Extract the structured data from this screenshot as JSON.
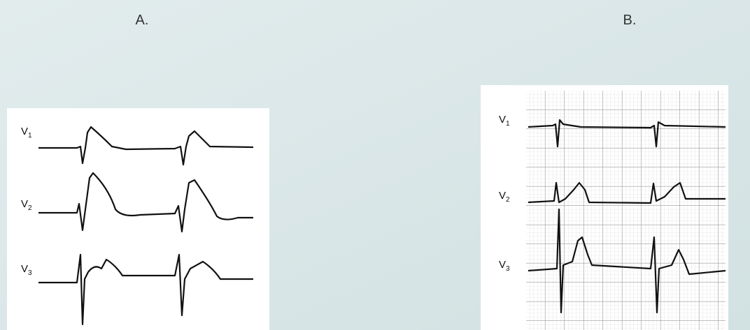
{
  "headings": [
    "A.",
    "B."
  ],
  "panels": [
    {
      "leads": [
        {
          "lead": "V",
          "sub": "1"
        },
        {
          "lead": "V",
          "sub": "2"
        },
        {
          "lead": "V",
          "sub": "3"
        }
      ]
    },
    {
      "leads": [
        {
          "lead": "V",
          "sub": "1"
        },
        {
          "lead": "V",
          "sub": "2"
        },
        {
          "lead": "V",
          "sub": "3"
        }
      ]
    }
  ]
}
